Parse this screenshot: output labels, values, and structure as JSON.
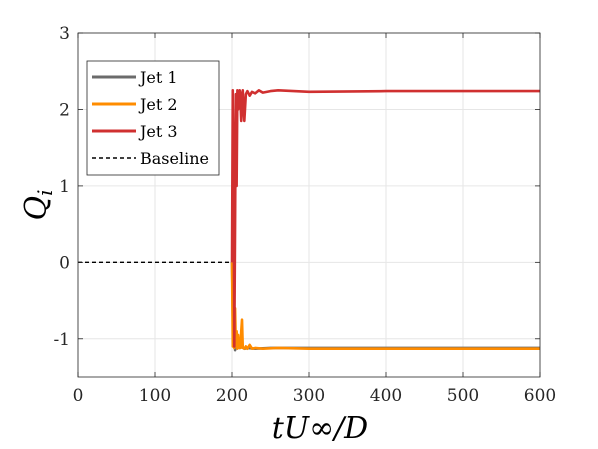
{
  "chart_data": {
    "type": "line",
    "xlabel": "tU∞/D",
    "ylabel": "Q",
    "ylabel_subscript": "i",
    "xlim": [
      0,
      600
    ],
    "ylim": [
      -1.5,
      3
    ],
    "x_ticks": [
      0,
      100,
      200,
      300,
      400,
      500,
      600
    ],
    "x_tick_labels": [
      "0",
      "100",
      "200",
      "300",
      "400",
      "500",
      "600"
    ],
    "y_ticks": [
      -1,
      0,
      1,
      2,
      3
    ],
    "y_tick_labels": [
      "-1",
      "0",
      "1",
      "2",
      "3"
    ],
    "grid": true,
    "legend_position": "top-left",
    "series": [
      {
        "name": "Jet 1",
        "color": "#6b6b6b",
        "style": "solid",
        "x": [
          200,
          201,
          202,
          203,
          204,
          205,
          206,
          207,
          208,
          210,
          213,
          216,
          220,
          230,
          250,
          300,
          400,
          500,
          600
        ],
        "y": [
          0,
          -0.7,
          -1.1,
          -0.9,
          -1.15,
          -1.05,
          -1.12,
          -1.0,
          -1.1,
          -1.12,
          -1.1,
          -1.13,
          -1.12,
          -1.13,
          -1.12,
          -1.12,
          -1.12,
          -1.12,
          -1.12
        ]
      },
      {
        "name": "Jet 2",
        "color": "#ff8c00",
        "style": "solid",
        "x": [
          200,
          201,
          202,
          203,
          204,
          205,
          206,
          207,
          208,
          209,
          210,
          211,
          212,
          213,
          214,
          215,
          216,
          218,
          220,
          223,
          226,
          230,
          240,
          260,
          300,
          400,
          500,
          600
        ],
        "y": [
          0,
          -1.1,
          -0.4,
          -1.12,
          -0.6,
          -1.1,
          -0.9,
          -1.13,
          -0.95,
          -1.1,
          -1.12,
          -1.12,
          -0.9,
          -0.75,
          -1.12,
          -1.12,
          -1.13,
          -1.1,
          -1.13,
          -1.08,
          -1.13,
          -1.12,
          -1.13,
          -1.12,
          -1.13,
          -1.13,
          -1.13,
          -1.13
        ]
      },
      {
        "name": "Jet 3",
        "color": "#d03030",
        "style": "solid",
        "x": [
          200,
          201,
          202,
          203,
          204,
          205,
          206,
          207,
          208,
          209,
          210,
          211,
          212,
          213,
          214,
          215,
          216,
          218,
          220,
          223,
          226,
          230,
          235,
          240,
          250,
          260,
          280,
          300,
          400,
          500,
          600
        ],
        "y": [
          0,
          2.25,
          1.2,
          -1.1,
          0.5,
          2.2,
          1.0,
          2.25,
          2.0,
          2.2,
          2.25,
          2.1,
          1.85,
          2.2,
          2.25,
          2.0,
          1.85,
          2.2,
          2.24,
          2.18,
          2.23,
          2.21,
          2.25,
          2.22,
          2.24,
          2.25,
          2.24,
          2.23,
          2.24,
          2.24,
          2.24
        ]
      },
      {
        "name": "Baseline",
        "color": "#000000",
        "style": "dashed",
        "x": [
          0,
          200
        ],
        "y": [
          0,
          0
        ]
      }
    ]
  }
}
